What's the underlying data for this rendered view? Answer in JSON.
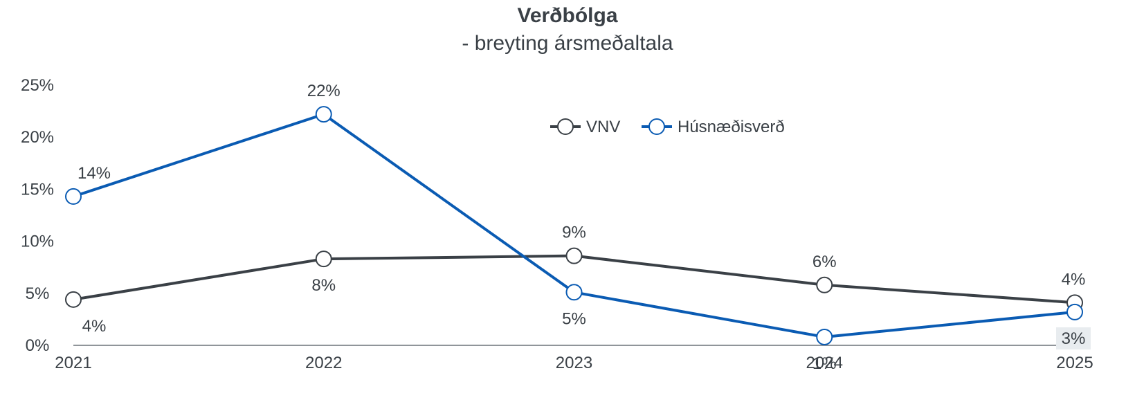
{
  "chart_data": {
    "type": "line",
    "title": "Verðbólga",
    "subtitle": "- breyting ársmeðaltala",
    "x": [
      "2021",
      "2022",
      "2023",
      "2024",
      "2025"
    ],
    "y_ticks": [
      "0%",
      "5%",
      "10%",
      "15%",
      "20%",
      "25%"
    ],
    "ylim": [
      0,
      25
    ],
    "grid": false,
    "legend_position": "top-center",
    "series": [
      {
        "name": "VNV",
        "color": "#3a4046",
        "values": [
          4.4,
          8.3,
          8.6,
          5.8,
          4.1
        ],
        "labels": [
          "4%",
          "8%",
          "9%",
          "6%",
          "4%"
        ]
      },
      {
        "name": "Húsnæðisverð",
        "color": "#0a5bb3",
        "values": [
          14.3,
          22.2,
          5.1,
          0.8,
          3.2
        ],
        "labels": [
          "14%",
          "22%",
          "5%",
          "1%",
          "3%"
        ]
      }
    ]
  }
}
